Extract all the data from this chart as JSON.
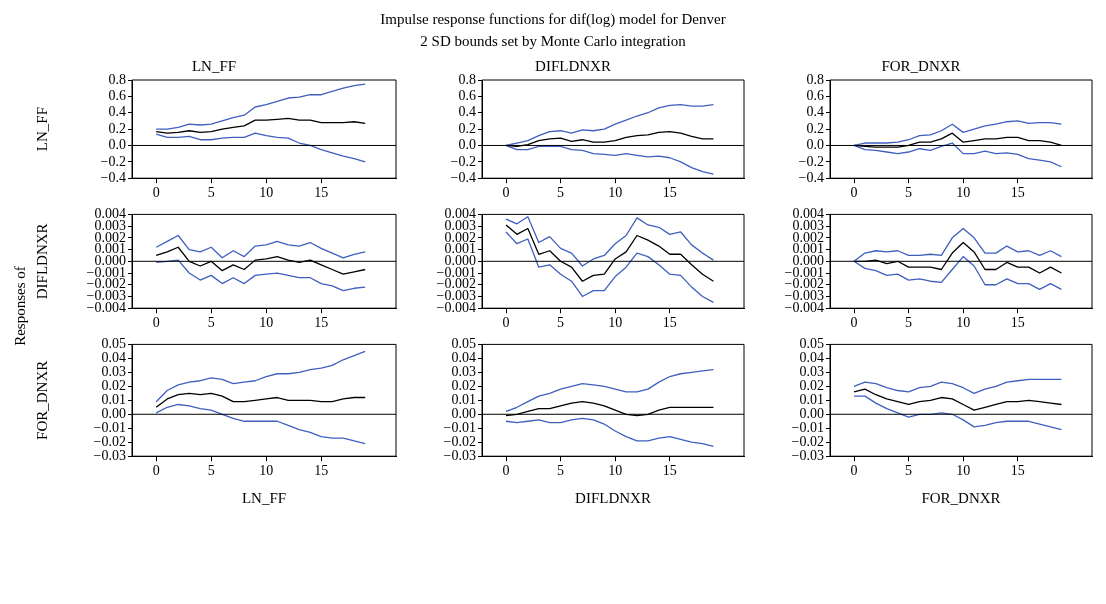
{
  "chart_data": [
    {
      "type": "line",
      "title": "LN_FF",
      "ylabel": "LN_FF",
      "annotations": [
        "Impulse response functions for dif(log) model for Denver",
        "2 SD bounds set by Monte Carlo integration"
      ],
      "x": [
        0,
        1,
        2,
        3,
        4,
        5,
        6,
        7,
        8,
        9,
        10,
        11,
        12,
        13,
        14,
        15,
        16,
        17,
        18,
        19
      ],
      "xlim": [
        -2.2,
        21.8
      ],
      "xticks": [
        0,
        5,
        10,
        15
      ],
      "ylim": [
        -0.4,
        0.8
      ],
      "yticks": [
        {
          "value": -0.4,
          "label": "−0.4"
        },
        {
          "value": -0.2,
          "label": "−0.2"
        },
        {
          "value": 0,
          "label": "0.0"
        },
        0.2,
        0.4,
        0.6,
        0.8
      ],
      "ref_lines": [
        {
          "axis": "y",
          "value": 0,
          "color": "#000000"
        }
      ],
      "series": [
        {
          "color": "#3f5fbf",
          "values": [
            0.2,
            0.2,
            0.22,
            0.26,
            0.25,
            0.26,
            0.3,
            0.34,
            0.37,
            0.47,
            0.5,
            0.54,
            0.58,
            0.59,
            0.62,
            0.62,
            0.66,
            0.7,
            0.73,
            0.75
          ]
        },
        {
          "color": "#000000",
          "values": [
            0.17,
            0.15,
            0.16,
            0.18,
            0.16,
            0.17,
            0.2,
            0.22,
            0.24,
            0.31,
            0.31,
            0.32,
            0.33,
            0.31,
            0.31,
            0.28,
            0.28,
            0.28,
            0.29,
            0.27
          ]
        },
        {
          "color": "#3f5fbf",
          "values": [
            0.14,
            0.1,
            0.1,
            0.11,
            0.07,
            0.07,
            0.09,
            0.1,
            0.1,
            0.15,
            0.12,
            0.1,
            0.09,
            0.03,
            0.0,
            -0.05,
            -0.09,
            -0.13,
            -0.16,
            -0.2
          ]
        }
      ]
    },
    {
      "type": "line",
      "title": "DIFLDNXR",
      "x": [
        0,
        1,
        2,
        3,
        4,
        5,
        6,
        7,
        8,
        9,
        10,
        11,
        12,
        13,
        14,
        15,
        16,
        17,
        18,
        19
      ],
      "xlim": [
        -2.2,
        21.8
      ],
      "xticks": [
        0,
        5,
        10,
        15
      ],
      "ylim": [
        -0.4,
        0.8
      ],
      "yticks": [
        {
          "value": -0.4,
          "label": "−0.4"
        },
        {
          "value": -0.2,
          "label": "−0.2"
        },
        {
          "value": 0,
          "label": "0.0"
        },
        0.2,
        0.4,
        0.6,
        0.8
      ],
      "ref_lines": [
        {
          "axis": "y",
          "value": 0,
          "color": "#000000"
        }
      ],
      "series": [
        {
          "color": "#3f5fbf",
          "values": [
            0.0,
            0.03,
            0.06,
            0.12,
            0.17,
            0.18,
            0.15,
            0.19,
            0.18,
            0.2,
            0.26,
            0.31,
            0.36,
            0.4,
            0.46,
            0.49,
            0.5,
            0.48,
            0.48,
            0.5
          ]
        },
        {
          "color": "#000000",
          "values": [
            0.0,
            -0.01,
            0.01,
            0.06,
            0.08,
            0.09,
            0.05,
            0.07,
            0.04,
            0.04,
            0.06,
            0.1,
            0.12,
            0.13,
            0.16,
            0.17,
            0.15,
            0.11,
            0.08,
            0.08
          ]
        },
        {
          "color": "#3f5fbf",
          "values": [
            0.0,
            -0.05,
            -0.05,
            -0.01,
            -0.01,
            -0.01,
            -0.05,
            -0.06,
            -0.1,
            -0.11,
            -0.12,
            -0.1,
            -0.12,
            -0.14,
            -0.13,
            -0.15,
            -0.2,
            -0.27,
            -0.32,
            -0.35
          ]
        }
      ]
    },
    {
      "type": "line",
      "title": "FOR_DNXR",
      "x": [
        0,
        1,
        2,
        3,
        4,
        5,
        6,
        7,
        8,
        9,
        10,
        11,
        12,
        13,
        14,
        15,
        16,
        17,
        18,
        19
      ],
      "xlim": [
        -2.2,
        21.8
      ],
      "xticks": [
        0,
        5,
        10,
        15
      ],
      "ylim": [
        -0.4,
        0.8
      ],
      "yticks": [
        {
          "value": -0.4,
          "label": "−0.4"
        },
        {
          "value": -0.2,
          "label": "−0.2"
        },
        {
          "value": 0,
          "label": "0.0"
        },
        0.2,
        0.4,
        0.6,
        0.8
      ],
      "ref_lines": [
        {
          "axis": "y",
          "value": 0,
          "color": "#000000"
        }
      ],
      "series": [
        {
          "color": "#3f5fbf",
          "values": [
            0,
            0.03,
            0.03,
            0.03,
            0.04,
            0.07,
            0.12,
            0.13,
            0.18,
            0.26,
            0.16,
            0.2,
            0.24,
            0.26,
            0.29,
            0.3,
            0.27,
            0.28,
            0.28,
            0.26
          ]
        },
        {
          "color": "#000000",
          "values": [
            0,
            -0.01,
            -0.02,
            -0.02,
            -0.02,
            0,
            0.04,
            0.04,
            0.08,
            0.15,
            0.04,
            0.06,
            0.08,
            0.08,
            0.1,
            0.1,
            0.06,
            0.06,
            0.04,
            0.0
          ]
        },
        {
          "color": "#3f5fbf",
          "values": [
            0,
            -0.05,
            -0.06,
            -0.08,
            -0.1,
            -0.08,
            -0.04,
            -0.06,
            -0.01,
            0.03,
            -0.1,
            -0.1,
            -0.07,
            -0.1,
            -0.09,
            -0.11,
            -0.16,
            -0.18,
            -0.2,
            -0.26
          ]
        }
      ]
    },
    {
      "type": "line",
      "ylabel": "DIFLDNXR",
      "annotations": [
        "Responses of"
      ],
      "x": [
        0,
        1,
        2,
        3,
        4,
        5,
        6,
        7,
        8,
        9,
        10,
        11,
        12,
        13,
        14,
        15,
        16,
        17,
        18,
        19
      ],
      "xlim": [
        -2.2,
        21.8
      ],
      "xticks": [
        0,
        5,
        10,
        15
      ],
      "ylim": [
        -0.004,
        0.004
      ],
      "yticks": [
        {
          "value": -0.004,
          "label": "−0.004"
        },
        {
          "value": -0.003,
          "label": "−0.003"
        },
        {
          "value": -0.002,
          "label": "−0.002"
        },
        {
          "value": -0.001,
          "label": "−0.001"
        },
        {
          "value": 0,
          "label": "0.000"
        },
        0.001,
        0.002,
        0.003,
        0.004
      ],
      "ref_lines": [
        {
          "axis": "y",
          "value": 0,
          "color": "#000000"
        }
      ],
      "series": [
        {
          "color": "#3f5fbf",
          "values": [
            0.0012,
            0.0017,
            0.0022,
            0.001,
            0.0008,
            0.0012,
            0.0003,
            0.0009,
            0.0004,
            0.0013,
            0.0014,
            0.0017,
            0.0014,
            0.0013,
            0.0016,
            0.0011,
            0.0007,
            0.0003,
            0.0006,
            0.0008
          ]
        },
        {
          "color": "#000000",
          "values": [
            0.0005,
            0.0008,
            0.0012,
            0.0,
            -0.0004,
            0.0,
            -0.0008,
            -0.0003,
            -0.0007,
            0.0001,
            0.0002,
            0.0004,
            0.0001,
            -0.0001,
            0.0001,
            -0.0003,
            -0.0007,
            -0.0011,
            -0.0009,
            -0.0007
          ]
        },
        {
          "color": "#3f5fbf",
          "values": [
            -0.0001,
            0.0,
            0.0001,
            -0.001,
            -0.0016,
            -0.0012,
            -0.0019,
            -0.0014,
            -0.0019,
            -0.0012,
            -0.0011,
            -0.001,
            -0.0012,
            -0.0014,
            -0.0014,
            -0.0019,
            -0.0021,
            -0.0025,
            -0.0023,
            -0.0022
          ]
        }
      ]
    },
    {
      "type": "line",
      "x": [
        0,
        1,
        2,
        3,
        4,
        5,
        6,
        7,
        8,
        9,
        10,
        11,
        12,
        13,
        14,
        15,
        16,
        17,
        18,
        19
      ],
      "xlim": [
        -2.2,
        21.8
      ],
      "xticks": [
        0,
        5,
        10,
        15
      ],
      "ylim": [
        -0.004,
        0.004
      ],
      "yticks": [
        {
          "value": -0.004,
          "label": "−0.004"
        },
        {
          "value": -0.003,
          "label": "−0.003"
        },
        {
          "value": -0.002,
          "label": "−0.002"
        },
        {
          "value": -0.001,
          "label": "−0.001"
        },
        {
          "value": 0,
          "label": "0.000"
        },
        0.001,
        0.002,
        0.003,
        0.004
      ],
      "ref_lines": [
        {
          "axis": "y",
          "value": 0,
          "color": "#000000"
        }
      ],
      "series": [
        {
          "color": "#3f5fbf",
          "values": [
            0.0036,
            0.0032,
            0.0038,
            0.0016,
            0.0021,
            0.0011,
            0.0007,
            -0.0004,
            0.0002,
            0.0005,
            0.0015,
            0.0022,
            0.0037,
            0.0031,
            0.0029,
            0.0023,
            0.0025,
            0.0014,
            0.0007,
            0.0001
          ]
        },
        {
          "color": "#000000",
          "values": [
            0.0031,
            0.0023,
            0.0028,
            0.0006,
            0.0009,
            0.0,
            -0.0005,
            -0.0017,
            -0.0012,
            -0.0011,
            0.0002,
            0.0008,
            0.0022,
            0.0018,
            0.0013,
            0.0006,
            0.0006,
            -0.0003,
            -0.0011,
            -0.0017
          ]
        },
        {
          "color": "#3f5fbf",
          "values": [
            0.0025,
            0.0015,
            0.0019,
            -0.0005,
            -0.0003,
            -0.0011,
            -0.0017,
            -0.003,
            -0.0025,
            -0.0025,
            -0.0013,
            -0.0005,
            0.0007,
            0.0004,
            -0.0003,
            -0.0011,
            -0.0012,
            -0.0022,
            -0.003,
            -0.0035
          ]
        }
      ]
    },
    {
      "type": "line",
      "x": [
        0,
        1,
        2,
        3,
        4,
        5,
        6,
        7,
        8,
        9,
        10,
        11,
        12,
        13,
        14,
        15,
        16,
        17,
        18,
        19
      ],
      "xlim": [
        -2.2,
        21.8
      ],
      "xticks": [
        0,
        5,
        10,
        15
      ],
      "ylim": [
        -0.004,
        0.004
      ],
      "yticks": [
        {
          "value": -0.004,
          "label": "−0.004"
        },
        {
          "value": -0.003,
          "label": "−0.003"
        },
        {
          "value": -0.002,
          "label": "−0.002"
        },
        {
          "value": -0.001,
          "label": "−0.001"
        },
        {
          "value": 0,
          "label": "0.000"
        },
        0.001,
        0.002,
        0.003,
        0.004
      ],
      "ref_lines": [
        {
          "axis": "y",
          "value": 0,
          "color": "#000000"
        }
      ],
      "series": [
        {
          "color": "#3f5fbf",
          "values": [
            0,
            0.0007,
            0.0009,
            0.0008,
            0.0009,
            0.0005,
            0.0005,
            0.0006,
            0.0005,
            0.002,
            0.0028,
            0.002,
            0.0007,
            0.0007,
            0.0013,
            0.0008,
            0.0009,
            0.0005,
            0.0009,
            0.0004
          ]
        },
        {
          "color": "#000000",
          "values": [
            0,
            0,
            0.0001,
            -0.0002,
            0,
            -0.0005,
            -0.0005,
            -0.0005,
            -0.0007,
            0.0007,
            0.0016,
            0.0008,
            -0.0007,
            -0.0007,
            -0.0001,
            -0.0005,
            -0.0005,
            -0.001,
            -0.0005,
            -0.001
          ]
        },
        {
          "color": "#3f5fbf",
          "values": [
            0,
            -0.0006,
            -0.0008,
            -0.0012,
            -0.0011,
            -0.0016,
            -0.0015,
            -0.0017,
            -0.0018,
            -0.0007,
            0.0004,
            -0.0004,
            -0.002,
            -0.002,
            -0.0015,
            -0.0019,
            -0.0019,
            -0.0024,
            -0.0019,
            -0.0024
          ]
        }
      ]
    },
    {
      "type": "line",
      "ylabel": "FOR_DNXR",
      "xlabel": "LN_FF",
      "x": [
        0,
        1,
        2,
        3,
        4,
        5,
        6,
        7,
        8,
        9,
        10,
        11,
        12,
        13,
        14,
        15,
        16,
        17,
        18,
        19
      ],
      "xlim": [
        -2.2,
        21.8
      ],
      "xticks": [
        0,
        5,
        10,
        15
      ],
      "ylim": [
        -0.03,
        0.05
      ],
      "yticks": [
        {
          "value": -0.03,
          "label": "−0.03"
        },
        {
          "value": -0.02,
          "label": "−0.02"
        },
        {
          "value": -0.01,
          "label": "−0.01"
        },
        {
          "value": 0,
          "label": "0.00"
        },
        0.01,
        0.02,
        0.03,
        0.04,
        0.05
      ],
      "ref_lines": [
        {
          "axis": "y",
          "value": 0,
          "color": "#000000"
        }
      ],
      "series": [
        {
          "color": "#3f5fbf",
          "values": [
            0.009,
            0.017,
            0.021,
            0.023,
            0.024,
            0.026,
            0.025,
            0.022,
            0.023,
            0.024,
            0.027,
            0.029,
            0.029,
            0.03,
            0.032,
            0.033,
            0.035,
            0.039,
            0.042,
            0.045
          ]
        },
        {
          "color": "#000000",
          "values": [
            0.005,
            0.011,
            0.014,
            0.015,
            0.014,
            0.015,
            0.013,
            0.009,
            0.009,
            0.01,
            0.011,
            0.012,
            0.01,
            0.01,
            0.01,
            0.009,
            0.009,
            0.011,
            0.012,
            0.012
          ]
        },
        {
          "color": "#3f5fbf",
          "values": [
            0.001,
            0.005,
            0.007,
            0.006,
            0.004,
            0.003,
            0.0,
            -0.003,
            -0.005,
            -0.005,
            -0.005,
            -0.005,
            -0.008,
            -0.011,
            -0.013,
            -0.016,
            -0.017,
            -0.017,
            -0.019,
            -0.021
          ]
        }
      ]
    },
    {
      "type": "line",
      "xlabel": "DIFLDNXR",
      "x": [
        0,
        1,
        2,
        3,
        4,
        5,
        6,
        7,
        8,
        9,
        10,
        11,
        12,
        13,
        14,
        15,
        16,
        17,
        18,
        19
      ],
      "xlim": [
        -2.2,
        21.8
      ],
      "xticks": [
        0,
        5,
        10,
        15
      ],
      "ylim": [
        -0.03,
        0.05
      ],
      "yticks": [
        {
          "value": -0.03,
          "label": "−0.03"
        },
        {
          "value": -0.02,
          "label": "−0.02"
        },
        {
          "value": -0.01,
          "label": "−0.01"
        },
        {
          "value": 0,
          "label": "0.00"
        },
        0.01,
        0.02,
        0.03,
        0.04,
        0.05
      ],
      "ref_lines": [
        {
          "axis": "y",
          "value": 0,
          "color": "#000000"
        }
      ],
      "series": [
        {
          "color": "#3f5fbf",
          "values": [
            0.002,
            0.005,
            0.009,
            0.013,
            0.015,
            0.018,
            0.02,
            0.022,
            0.021,
            0.02,
            0.018,
            0.016,
            0.016,
            0.018,
            0.023,
            0.027,
            0.029,
            0.03,
            0.031,
            0.032
          ]
        },
        {
          "color": "#000000",
          "values": [
            -0.001,
            0.0,
            0.002,
            0.004,
            0.004,
            0.006,
            0.008,
            0.009,
            0.008,
            0.006,
            0.003,
            0.0,
            -0.001,
            0.0,
            0.003,
            0.005,
            0.005,
            0.005,
            0.005,
            0.005
          ]
        },
        {
          "color": "#3f5fbf",
          "values": [
            -0.005,
            -0.006,
            -0.005,
            -0.004,
            -0.006,
            -0.006,
            -0.004,
            -0.003,
            -0.004,
            -0.007,
            -0.012,
            -0.016,
            -0.019,
            -0.019,
            -0.017,
            -0.016,
            -0.018,
            -0.02,
            -0.021,
            -0.023
          ]
        }
      ]
    },
    {
      "type": "line",
      "xlabel": "FOR_DNXR",
      "x": [
        0,
        1,
        2,
        3,
        4,
        5,
        6,
        7,
        8,
        9,
        10,
        11,
        12,
        13,
        14,
        15,
        16,
        17,
        18,
        19
      ],
      "xlim": [
        -2.2,
        21.8
      ],
      "xticks": [
        0,
        5,
        10,
        15
      ],
      "ylim": [
        -0.03,
        0.05
      ],
      "yticks": [
        {
          "value": -0.03,
          "label": "−0.03"
        },
        {
          "value": -0.02,
          "label": "−0.02"
        },
        {
          "value": -0.01,
          "label": "−0.01"
        },
        {
          "value": 0,
          "label": "0.00"
        },
        0.01,
        0.02,
        0.03,
        0.04,
        0.05
      ],
      "ref_lines": [
        {
          "axis": "y",
          "value": 0,
          "color": "#000000"
        }
      ],
      "series": [
        {
          "color": "#3f5fbf",
          "values": [
            0.02,
            0.023,
            0.022,
            0.019,
            0.017,
            0.016,
            0.019,
            0.02,
            0.023,
            0.022,
            0.019,
            0.015,
            0.018,
            0.02,
            0.023,
            0.024,
            0.025,
            0.025,
            0.025,
            0.025
          ]
        },
        {
          "color": "#000000",
          "values": [
            0.016,
            0.018,
            0.014,
            0.011,
            0.009,
            0.007,
            0.009,
            0.01,
            0.012,
            0.011,
            0.007,
            0.003,
            0.005,
            0.007,
            0.009,
            0.009,
            0.01,
            0.009,
            0.008,
            0.007
          ]
        },
        {
          "color": "#3f5fbf",
          "values": [
            0.013,
            0.013,
            0.008,
            0.004,
            0.001,
            -0.002,
            0.0,
            0.0,
            0.001,
            0.0,
            -0.004,
            -0.009,
            -0.008,
            -0.006,
            -0.005,
            -0.005,
            -0.005,
            -0.007,
            -0.009,
            -0.011
          ]
        }
      ]
    }
  ]
}
